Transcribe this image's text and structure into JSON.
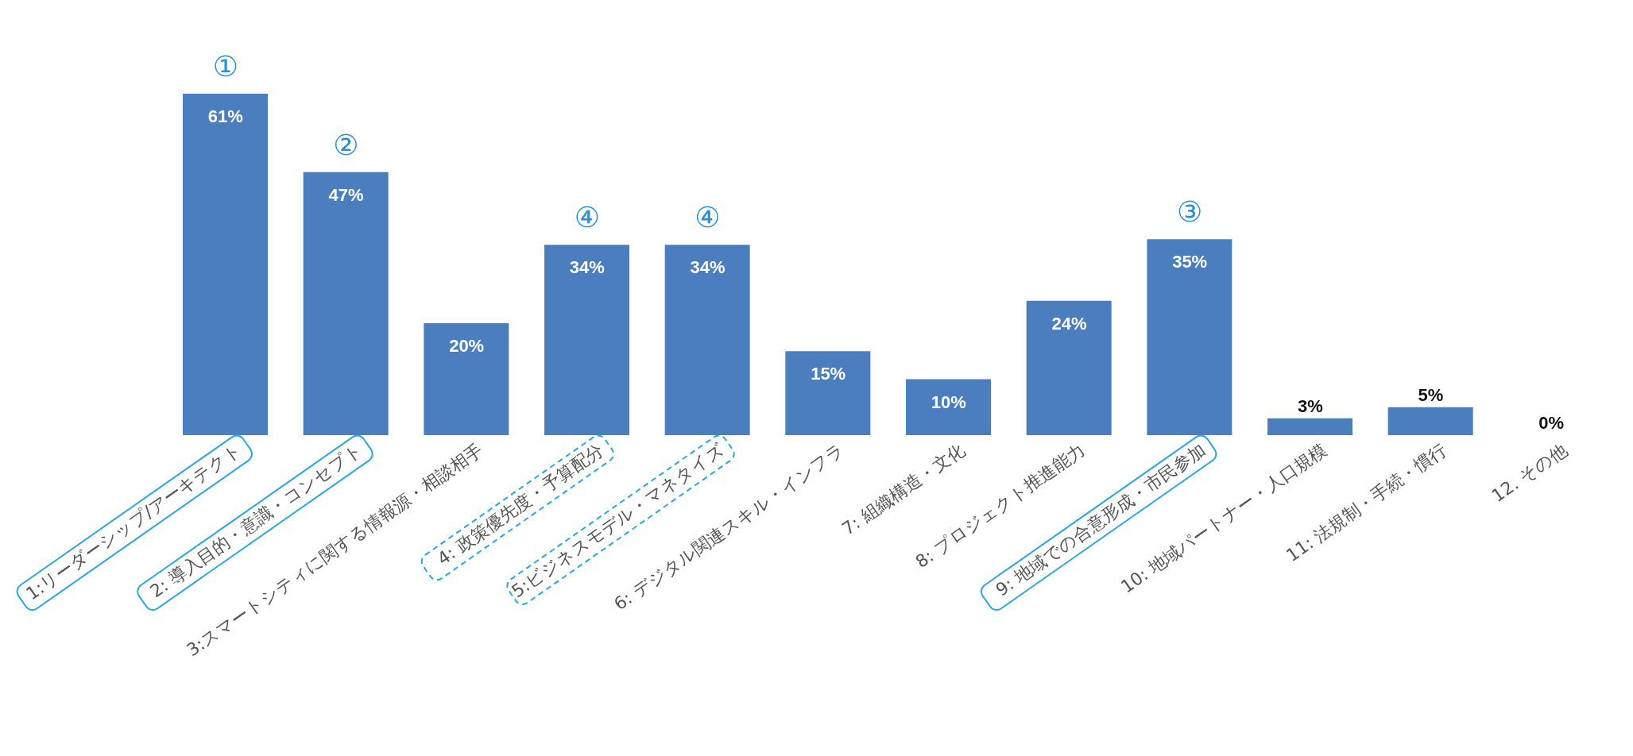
{
  "chart_data": {
    "type": "bar",
    "categories": [
      "1:リーダーシップ/アーキテクト",
      "2: 導入目的・意識・コンセプト",
      "3:スマートシティに関する情報源・相談相手",
      "4: 政策優先度・予算配分",
      "5:ビジネスモデル・マネタイズ",
      "6: デジタル関連スキル・インフラ",
      "7: 組織構造・文化",
      "8: プロジェクト推進能力",
      "9: 地域での合意形成・市民参加",
      "10: 地域パートナー・人口規模",
      "11: 法規制・手続・慣行",
      "12. その他"
    ],
    "values": [
      61,
      47,
      20,
      34,
      34,
      15,
      10,
      24,
      35,
      3,
      5,
      0
    ],
    "value_labels": [
      "61%",
      "47%",
      "20%",
      "34%",
      "34%",
      "15%",
      "10%",
      "24%",
      "35%",
      "3%",
      "5%",
      "0%"
    ],
    "color": "#4a7ebf",
    "grid": false,
    "legend": false,
    "annotations": [
      {
        "text": "①",
        "x": "1:リーダーシップ/アーキテクト",
        "y": 61
      },
      {
        "text": "②",
        "x": "2: 導入目的・意識・コンセプト",
        "y": 47
      },
      {
        "text": "④",
        "x": "4: 政策優先度・予算配分",
        "y": 34
      },
      {
        "text": "④",
        "x": "5:ビジネスモデル・マネタイズ",
        "y": 34
      },
      {
        "text": "③",
        "x": "9: 地域での合意形成・市民参加",
        "y": 35
      }
    ]
  }
}
